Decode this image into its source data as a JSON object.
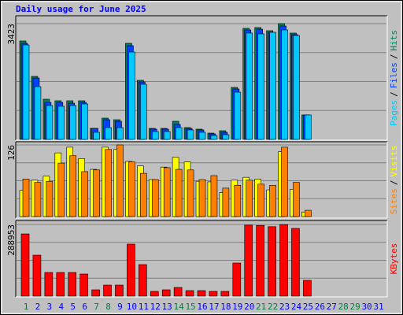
{
  "chart_data": {
    "type": "bar",
    "title": "Daily usage for June 2025",
    "categories": [
      "1",
      "2",
      "3",
      "4",
      "5",
      "6",
      "7",
      "8",
      "9",
      "10",
      "11",
      "12",
      "13",
      "14",
      "15",
      "16",
      "17",
      "18",
      "19",
      "20",
      "21",
      "22",
      "23",
      "24",
      "25",
      "26",
      "27",
      "28",
      "29",
      "30",
      "31"
    ],
    "category_colors": [
      "#008040",
      "#0000ff",
      "#0000ff",
      "#0000ff",
      "#0000ff",
      "#0000ff",
      "#008040",
      "#008040",
      "#0000ff",
      "#0000ff",
      "#0000ff",
      "#0000ff",
      "#0000ff",
      "#008040",
      "#008040",
      "#0000ff",
      "#0000ff",
      "#0000ff",
      "#0000ff",
      "#0000ff",
      "#008040",
      "#008040",
      "#0000ff",
      "#0000ff",
      "#0000ff",
      "#0000ff",
      "#0000ff",
      "#008040",
      "#008040",
      "#0000ff",
      "#0000ff"
    ],
    "legend_separator": "/",
    "grid": true,
    "panels": [
      {
        "ylim": [
          0,
          3423
        ],
        "yticks": [
          3423
        ],
        "series": [
          {
            "name": "Hits",
            "color": "#00805c",
            "values": [
              2911,
              1863,
              1188,
              1142,
              1142,
              1142,
              326,
              629,
              582,
              2841,
              1747,
              326,
              326,
              536,
              349,
              303,
              186,
              256,
              1537,
              3284,
              3307,
              3214,
              3423,
              3144,
              722,
              0,
              0,
              0,
              0,
              0,
              0
            ]
          },
          {
            "name": "Files",
            "color": "#0040ff",
            "values": [
              2841,
              1816,
              1095,
              1095,
              1072,
              1095,
              326,
              582,
              536,
              2771,
              1700,
              303,
              303,
              442,
              326,
              280,
              163,
              210,
              1491,
              3237,
              3260,
              3167,
              3353,
              3097,
              722,
              0,
              0,
              0,
              0,
              0,
              0
            ]
          },
          {
            "name": "Pages",
            "color": "#00c8ff",
            "values": [
              2794,
              1560,
              1002,
              979,
              1002,
              1048,
              210,
              349,
              349,
              2585,
              1630,
              233,
              233,
              349,
              280,
              210,
              116,
              140,
              1397,
              3144,
              3121,
              3167,
              3237,
              3074,
              722,
              0,
              0,
              0,
              0,
              0,
              0
            ]
          }
        ]
      },
      {
        "ylim": [
          0,
          126
        ],
        "yticks": [
          126
        ],
        "series": [
          {
            "name": "Visits",
            "color": "#ffff00",
            "values": [
              46,
              64,
              71,
              112,
              122,
              102,
              83,
              122,
              118,
              97,
              89,
              65,
              87,
              104,
              96,
              62,
              61,
              42,
              64,
              69,
              66,
              47,
              114,
              48,
              8,
              0,
              0,
              0,
              0,
              0,
              0
            ]
          },
          {
            "name": "Sites",
            "color": "#ff8000",
            "values": [
              66,
              60,
              62,
              94,
              107,
              79,
              82,
              118,
              126,
              96,
              76,
              65,
              86,
              83,
              82,
              65,
              72,
              50,
              55,
              64,
              57,
              55,
              122,
              60,
              11,
              0,
              0,
              0,
              0,
              0,
              0
            ]
          }
        ]
      },
      {
        "ylim": [
          0,
          288953
        ],
        "yticks": [
          288953
        ],
        "series": [
          {
            "name": "KBytes",
            "color": "#ff0000",
            "values": [
              250800,
              165100,
              95250,
              95250,
              95250,
              88900,
              25400,
              44450,
              44450,
              209550,
              127000,
              19050,
              25400,
              34925,
              22225,
              22225,
              19050,
              19050,
              133350,
              286000,
              285000,
              280000,
              288953,
              273000,
              63500,
              0,
              0,
              0,
              0,
              0,
              0
            ]
          }
        ]
      }
    ]
  }
}
